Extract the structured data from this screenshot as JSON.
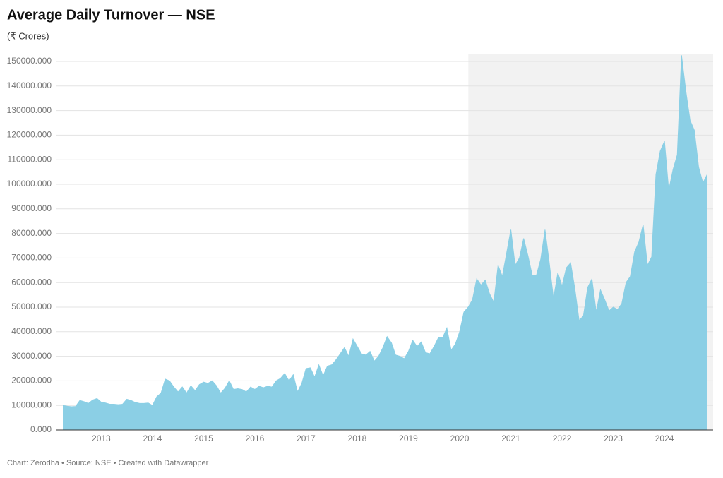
{
  "chart_data": {
    "type": "area",
    "title": "Average Daily Turnover — NSE",
    "subtitle": "(₹ Crores)",
    "footer": "Chart: Zerodha • Source: NSE • Created with Datawrapper",
    "color": "#8bcfe5",
    "shade_color": "#f2f2f2",
    "shaded_range": [
      2020.17,
      2024.95
    ],
    "grid": true,
    "xlim": [
      2012.25,
      2024.95
    ],
    "xticks": [
      2013,
      2014,
      2015,
      2016,
      2017,
      2018,
      2019,
      2020,
      2021,
      2022,
      2023,
      2024
    ],
    "ylim": [
      0,
      150000
    ],
    "yticks": [
      {
        "value": 0,
        "label": "0.000"
      },
      {
        "value": 10000,
        "label": "10000.000"
      },
      {
        "value": 20000,
        "label": "20000.000"
      },
      {
        "value": 30000,
        "label": "30000.000"
      },
      {
        "value": 40000,
        "label": "40000.000"
      },
      {
        "value": 50000,
        "label": "50000.000"
      },
      {
        "value": 60000,
        "label": "60000.000"
      },
      {
        "value": 70000,
        "label": "70000.000"
      },
      {
        "value": 80000,
        "label": "80000.000"
      },
      {
        "value": 90000,
        "label": "90000.000"
      },
      {
        "value": 100000,
        "label": "100000.000"
      },
      {
        "value": 110000,
        "label": "110000.000"
      },
      {
        "value": 120000,
        "label": "120000.000"
      },
      {
        "value": 130000,
        "label": "130000.000"
      },
      {
        "value": 140000,
        "label": "140000.000"
      },
      {
        "value": 150000,
        "label": "150000.000"
      }
    ],
    "x": [
      2012.25,
      2012.333,
      2012.417,
      2012.5,
      2012.583,
      2012.667,
      2012.75,
      2012.833,
      2012.917,
      2013,
      2013.083,
      2013.167,
      2013.25,
      2013.333,
      2013.417,
      2013.5,
      2013.583,
      2013.667,
      2013.75,
      2013.833,
      2013.917,
      2014,
      2014.083,
      2014.167,
      2014.25,
      2014.333,
      2014.417,
      2014.5,
      2014.583,
      2014.667,
      2014.75,
      2014.833,
      2014.917,
      2015,
      2015.083,
      2015.167,
      2015.25,
      2015.333,
      2015.417,
      2015.5,
      2015.583,
      2015.667,
      2015.75,
      2015.833,
      2015.917,
      2016,
      2016.083,
      2016.167,
      2016.25,
      2016.333,
      2016.417,
      2016.5,
      2016.583,
      2016.667,
      2016.75,
      2016.833,
      2016.917,
      2017,
      2017.083,
      2017.167,
      2017.25,
      2017.333,
      2017.417,
      2017.5,
      2017.583,
      2017.667,
      2017.75,
      2017.833,
      2017.917,
      2018,
      2018.083,
      2018.167,
      2018.25,
      2018.333,
      2018.417,
      2018.5,
      2018.583,
      2018.667,
      2018.75,
      2018.833,
      2018.917,
      2019,
      2019.083,
      2019.167,
      2019.25,
      2019.333,
      2019.417,
      2019.5,
      2019.583,
      2019.667,
      2019.75,
      2019.833,
      2019.917,
      2020,
      2020.083,
      2020.167,
      2020.25,
      2020.333,
      2020.417,
      2020.5,
      2020.583,
      2020.667,
      2020.75,
      2020.833,
      2020.917,
      2021,
      2021.083,
      2021.167,
      2021.25,
      2021.333,
      2021.417,
      2021.5,
      2021.583,
      2021.667,
      2021.75,
      2021.833,
      2021.917,
      2022,
      2022.083,
      2022.167,
      2022.25,
      2022.333,
      2022.417,
      2022.5,
      2022.583,
      2022.667,
      2022.75,
      2022.833,
      2022.917,
      2023,
      2023.083,
      2023.167,
      2023.25,
      2023.333,
      2023.417,
      2023.5,
      2023.583,
      2023.667,
      2023.75,
      2023.833,
      2023.917,
      2024,
      2024.083,
      2024.167,
      2024.25,
      2024.333,
      2024.417,
      2024.5,
      2024.583,
      2024.667,
      2024.75,
      2024.833
    ],
    "values": [
      10000,
      9700,
      9500,
      9600,
      12000,
      11500,
      10800,
      12200,
      12800,
      11300,
      11000,
      10500,
      10500,
      10300,
      10500,
      12500,
      12000,
      11200,
      10800,
      10800,
      11000,
      10000,
      13500,
      15000,
      20700,
      20000,
      17500,
      15500,
      17500,
      15000,
      18000,
      16000,
      18500,
      19500,
      19000,
      20000,
      18000,
      15000,
      17000,
      20000,
      16500,
      16800,
      16500,
      15500,
      17500,
      16500,
      17800,
      17200,
      17800,
      17500,
      20000,
      21000,
      23000,
      20000,
      22500,
      15500,
      19000,
      25000,
      25300,
      21500,
      26500,
      22000,
      26000,
      26500,
      28500,
      31000,
      33500,
      30000,
      37000,
      34000,
      31000,
      30500,
      32000,
      28000,
      30000,
      33500,
      38000,
      35500,
      30500,
      30000,
      29000,
      32000,
      36500,
      34000,
      35800,
      31500,
      31000,
      34000,
      37500,
      37500,
      41500,
      32500,
      35000,
      40000,
      48000,
      50000,
      53000,
      61500,
      59000,
      61000,
      55500,
      52000,
      67000,
      62500,
      72000,
      81500,
      67000,
      70000,
      78000,
      71000,
      63000,
      63000,
      69500,
      81500,
      68000,
      53500,
      64000,
      58500,
      66000,
      68000,
      57500,
      44500,
      46500,
      58000,
      61500,
      48000,
      57000,
      53000,
      48500,
      50000,
      49000,
      51500,
      60000,
      62500,
      72500,
      76500,
      83500,
      67000,
      70500,
      104000,
      113500,
      117500,
      97500,
      106000,
      112000,
      152500,
      138000,
      126000,
      122000,
      107000,
      100500,
      104000
    ]
  }
}
